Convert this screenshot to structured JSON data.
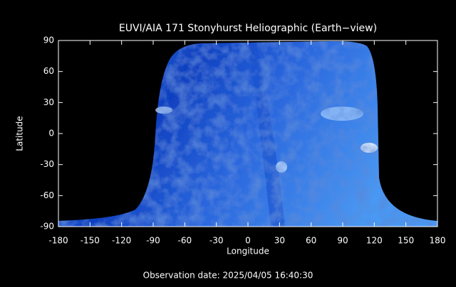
{
  "chart_data": {
    "type": "image",
    "title": "EUVI/AIA 171 Stonyhurst Heliographic (Earth−view)",
    "xlabel": "Longitude",
    "ylabel": "Latitude",
    "xlim": [
      -180,
      180
    ],
    "ylim": [
      -90,
      90
    ],
    "xticks": [
      -180,
      -150,
      -120,
      -90,
      -60,
      -30,
      0,
      30,
      60,
      90,
      120,
      150,
      180
    ],
    "yticks": [
      -90,
      -60,
      -30,
      0,
      30,
      60,
      90
    ],
    "footnote": "Observation date: 2025/04/05 16:40:30"
  }
}
